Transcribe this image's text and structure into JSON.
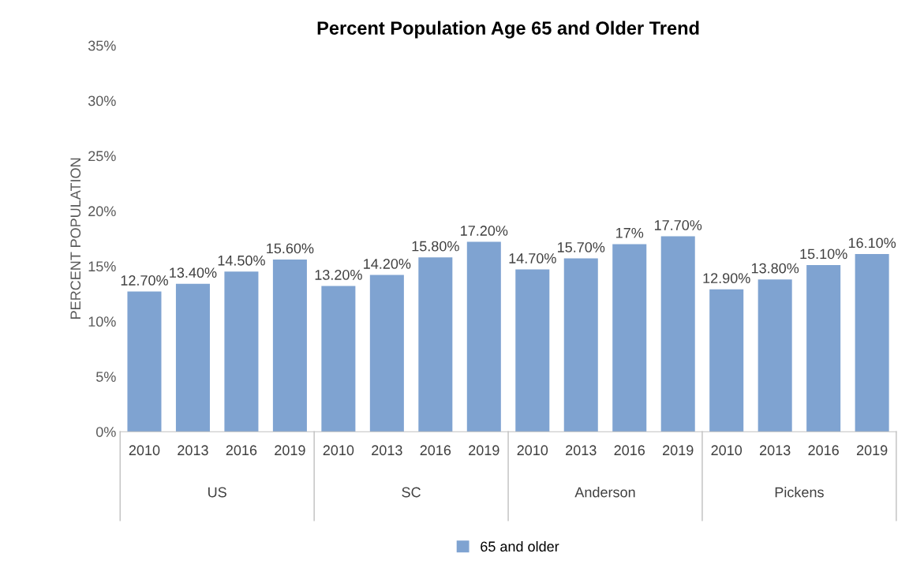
{
  "chart_data": {
    "type": "bar",
    "title": "Percent Population Age 65 and Older Trend",
    "ylabel": "PERCENT POPULATION",
    "categories": [
      "2010",
      "2013",
      "2016",
      "2019",
      "2010",
      "2013",
      "2016",
      "2019",
      "2010",
      "2013",
      "2016",
      "2019",
      "2010",
      "2013",
      "2016",
      "2019"
    ],
    "annotations": [
      "US",
      "SC",
      "Anderson",
      "Pickens"
    ],
    "series": [
      {
        "name": "65 and older",
        "color": "#7fa3d1",
        "values": [
          12.7,
          13.4,
          14.5,
          15.6,
          13.2,
          14.2,
          15.8,
          17.2,
          14.7,
          15.7,
          17,
          17.7,
          12.9,
          13.8,
          15.1,
          16.1
        ],
        "value_labels": [
          "12.70%",
          "13.40%",
          "14.50%",
          "15.60%",
          "13.20%",
          "14.20%",
          "15.80%",
          "17.20%",
          "14.70%",
          "15.70%",
          "17%",
          "17.70%",
          "12.90%",
          "13.80%",
          "15.10%",
          "16.10%"
        ]
      }
    ],
    "ylim": [
      0,
      35
    ],
    "yticks": [
      {
        "value": 0,
        "label": "0%"
      },
      {
        "value": 5,
        "label": "5%"
      },
      {
        "value": 10,
        "label": "10%"
      },
      {
        "value": 15,
        "label": "15%"
      },
      {
        "value": 20,
        "label": "20%"
      },
      {
        "value": 25,
        "label": "25%"
      },
      {
        "value": 30,
        "label": "30%"
      },
      {
        "value": 35,
        "label": "35%"
      }
    ],
    "grid": false,
    "legend": "bottom"
  }
}
